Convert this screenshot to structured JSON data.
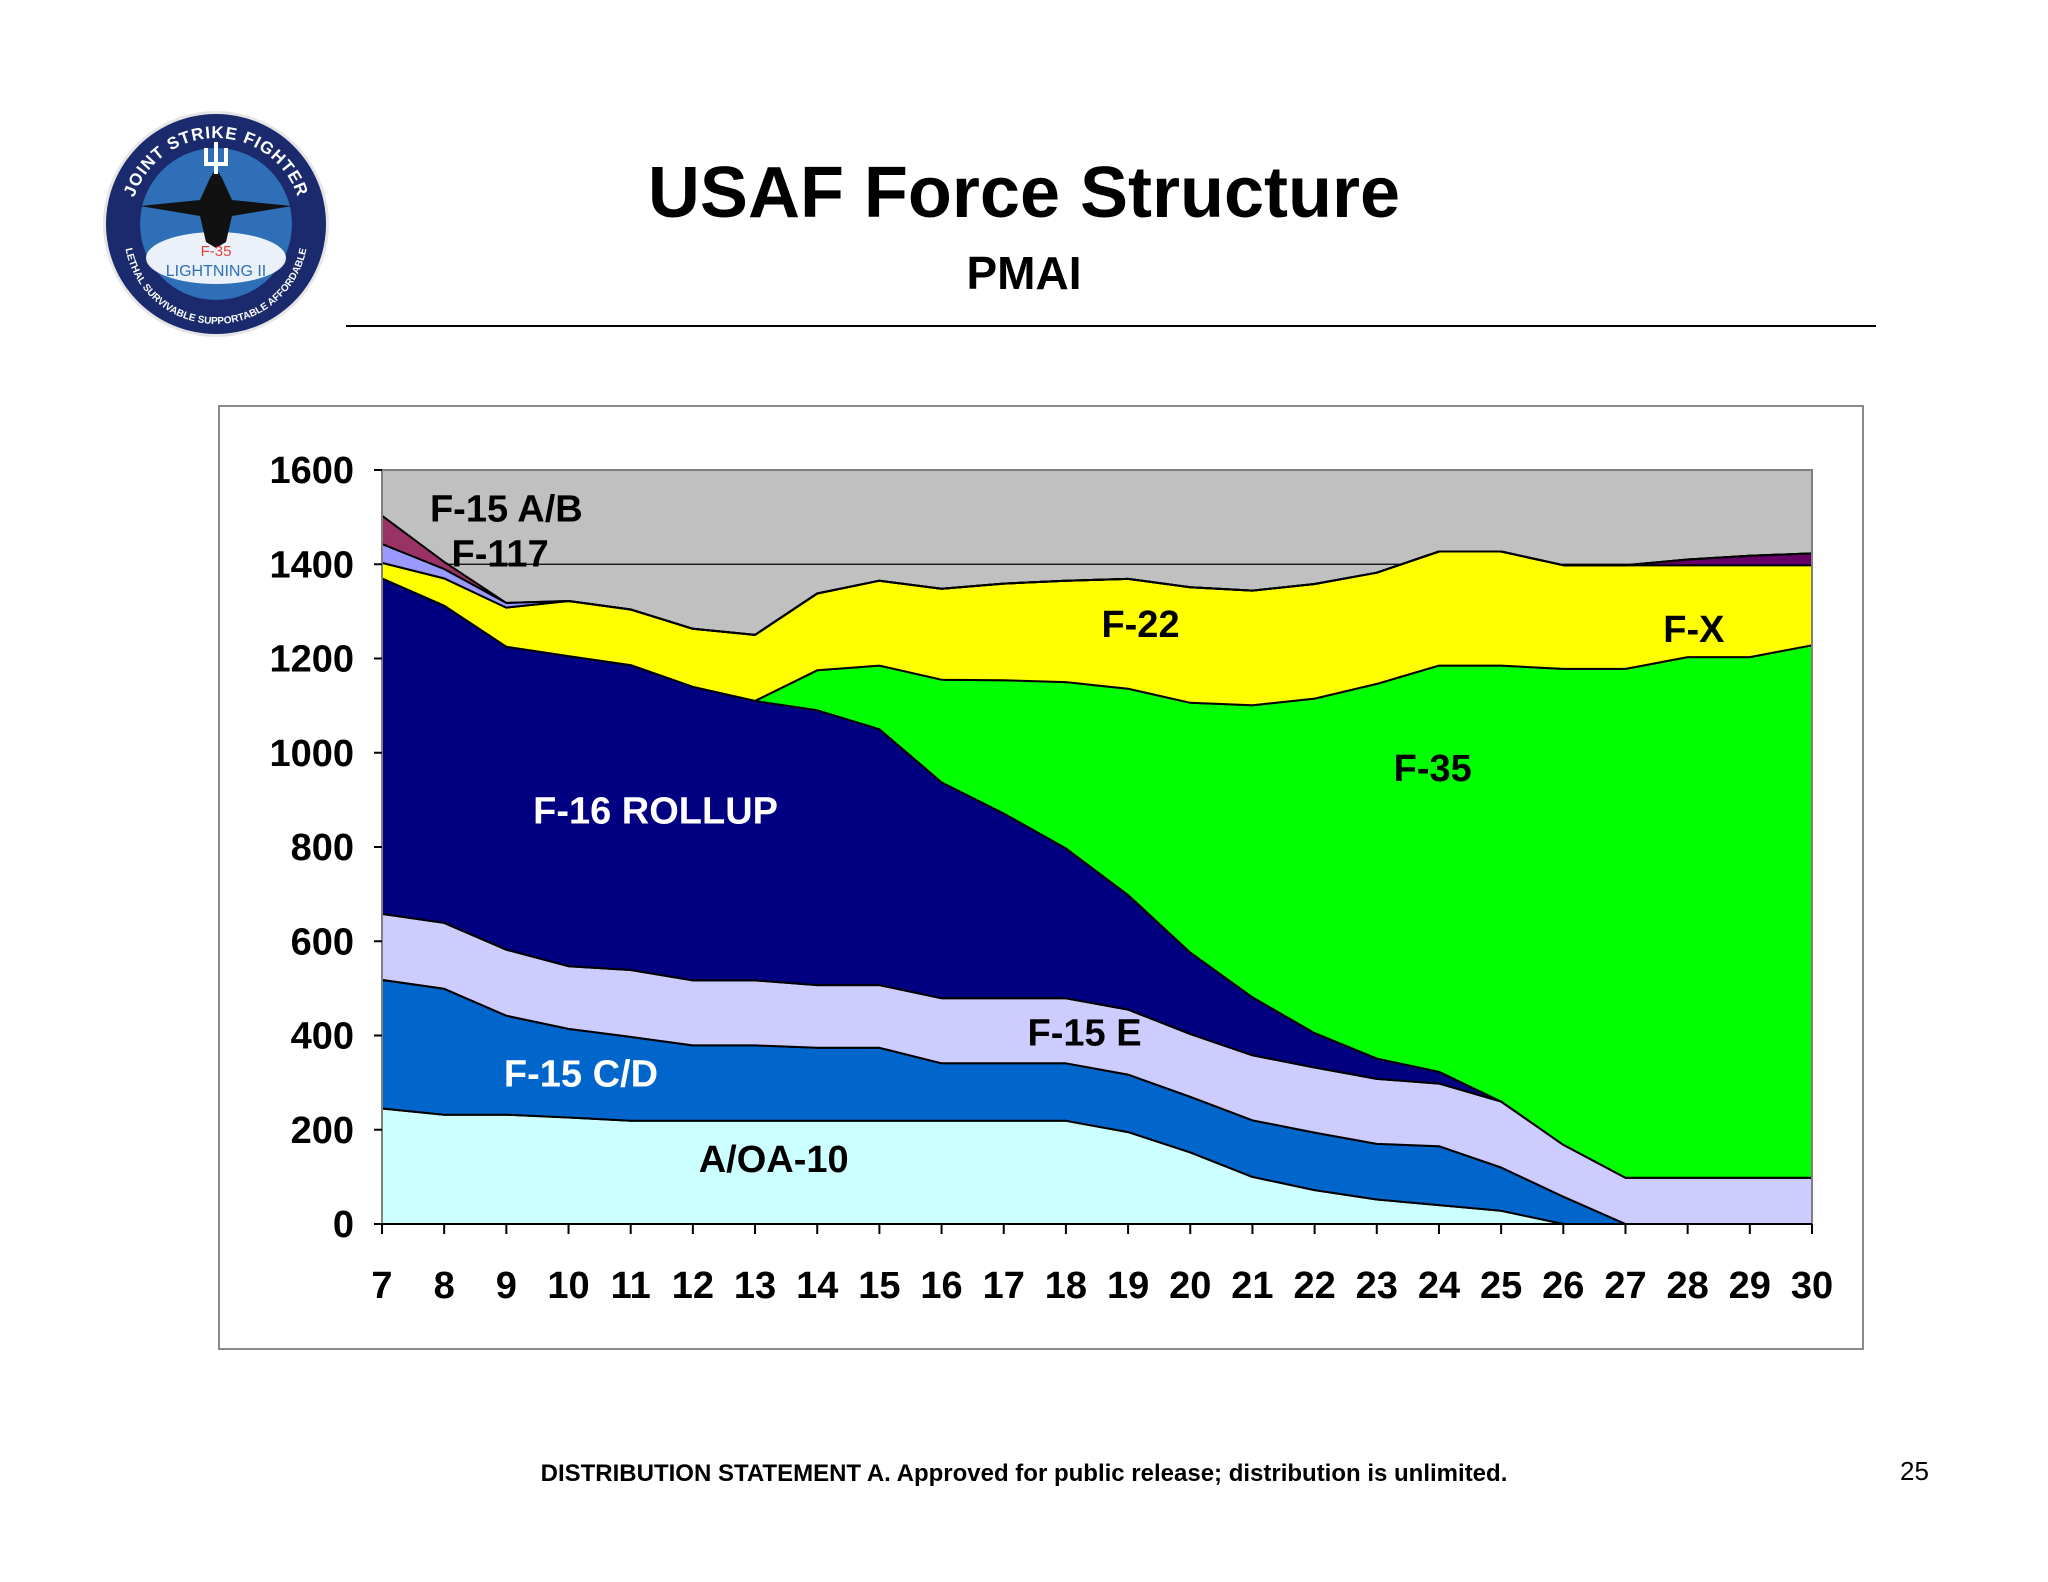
{
  "slide": {
    "title": "USAF Force Structure",
    "subtitle": "PMAI",
    "footer": "DISTRIBUTION STATEMENT A.  Approved for public release; distribution is unlimited.",
    "page_number": "25"
  },
  "logo": {
    "top_text": "JOINT STRIKE FIGHTER",
    "bottom_text": "LETHAL  SURVIVABLE  SUPPORTABLE  AFFORDABLE",
    "model": "F-35",
    "name": "LIGHTNING II",
    "colors": {
      "ring": "#1a2a6c",
      "inner": "#2f6fb8",
      "text": "#ffffff",
      "model": "#e84040"
    }
  },
  "chart_data": {
    "type": "area",
    "stacked": true,
    "x": [
      7,
      8,
      9,
      10,
      11,
      12,
      13,
      14,
      15,
      16,
      17,
      18,
      19,
      20,
      21,
      22,
      23,
      24,
      25,
      26,
      27,
      28,
      29,
      30
    ],
    "ylim": [
      0,
      1600
    ],
    "yticks": [
      0,
      200,
      400,
      600,
      800,
      1000,
      1200,
      1400,
      1600
    ],
    "grid": "horizontal at 1400",
    "plot_background": "#c0c0c0",
    "series": [
      {
        "name": "A/OA-10",
        "color": "#ccffff",
        "values": [
          245,
          232,
          232,
          226,
          219,
          219,
          219,
          219,
          219,
          219,
          219,
          219,
          195,
          152,
          100,
          72,
          52,
          40,
          28,
          0,
          0,
          0,
          0,
          0
        ]
      },
      {
        "name": "F-15 C/D",
        "color": "#0066cc",
        "values": [
          273,
          267,
          210,
          188,
          178,
          160,
          160,
          155,
          155,
          122,
          122,
          122,
          122,
          118,
          120,
          122,
          118,
          125,
          92,
          58,
          0,
          0,
          0,
          0
        ]
      },
      {
        "name": "F-15 E",
        "color": "#ccccff",
        "values": [
          140,
          140,
          140,
          133,
          142,
          138,
          138,
          133,
          133,
          138,
          138,
          138,
          138,
          133,
          138,
          138,
          138,
          133,
          140,
          110,
          98,
          98,
          98,
          98
        ]
      },
      {
        "name": "F-16 ROLLUP",
        "color": "#000080",
        "values": [
          712,
          673,
          643,
          658,
          647,
          623,
          593,
          583,
          543,
          458,
          392,
          318,
          243,
          173,
          123,
          73,
          43,
          25,
          0,
          0,
          0,
          0,
          0,
          0
        ]
      },
      {
        "name": "F-35",
        "color": "#00ff00",
        "values": [
          0,
          0,
          0,
          0,
          0,
          0,
          0,
          85,
          135,
          218,
          283,
          353,
          438,
          530,
          620,
          710,
          795,
          862,
          925,
          1010,
          1080,
          1105,
          1105,
          1130
        ]
      },
      {
        "name": "F-22",
        "color": "#ffff00",
        "values": [
          33,
          58,
          83,
          117,
          118,
          123,
          140,
          163,
          180,
          193,
          205,
          215,
          233,
          245,
          243,
          243,
          236,
          242,
          242,
          220,
          220,
          195,
          195,
          170
        ]
      },
      {
        "name": "F-X",
        "color": "#660066",
        "values": [
          0,
          0,
          0,
          0,
          0,
          0,
          0,
          0,
          0,
          0,
          0,
          0,
          0,
          0,
          0,
          0,
          0,
          0,
          0,
          0,
          0,
          12,
          20,
          25
        ]
      },
      {
        "name": "F-117",
        "color": "#9999ff",
        "values": [
          40,
          20,
          10,
          0,
          0,
          0,
          0,
          0,
          0,
          0,
          0,
          0,
          0,
          0,
          0,
          0,
          0,
          0,
          0,
          0,
          0,
          0,
          0,
          0
        ]
      },
      {
        "name": "F-15 A/B",
        "color": "#993366",
        "values": [
          60,
          15,
          0,
          0,
          0,
          0,
          0,
          0,
          0,
          0,
          0,
          0,
          0,
          0,
          0,
          0,
          0,
          0,
          0,
          0,
          0,
          0,
          0,
          0
        ]
      }
    ],
    "annotations": [
      {
        "text": "F-15 A/B",
        "x": 9.0,
        "y": 1520,
        "color": "#000000"
      },
      {
        "text": "F-117",
        "x": 8.9,
        "y": 1425,
        "color": "#000000"
      },
      {
        "text": "F-22",
        "x": 19.2,
        "y": 1275,
        "color": "#000000"
      },
      {
        "text": "F-X",
        "x": 28.1,
        "y": 1265,
        "color": "#000000"
      },
      {
        "text": "F-35",
        "x": 23.9,
        "y": 970,
        "color": "#000000"
      },
      {
        "text": "F-16 ROLLUP",
        "x": 11.4,
        "y": 880,
        "color": "#ffffff"
      },
      {
        "text": "F-15 E",
        "x": 18.3,
        "y": 408,
        "color": "#000000"
      },
      {
        "text": "F-15 C/D",
        "x": 10.2,
        "y": 322,
        "color": "#ffffff"
      },
      {
        "text": "A/OA-10",
        "x": 13.3,
        "y": 140,
        "color": "#000000"
      }
    ]
  }
}
